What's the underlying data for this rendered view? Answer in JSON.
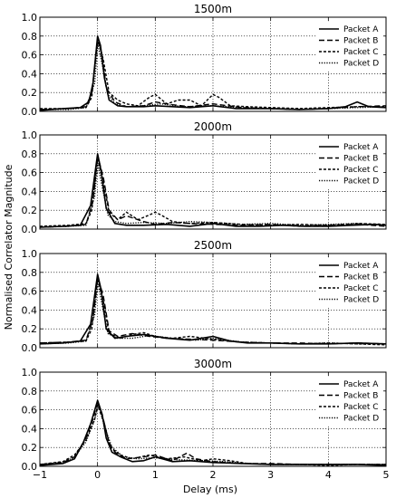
{
  "figure": {
    "ylabel": "Normalised Correlator Magnitude",
    "xlabel": "Delay (ms)"
  },
  "chart_data": [
    {
      "type": "line",
      "title": "1500m",
      "xlim": [
        -1,
        5
      ],
      "ylim": [
        0,
        1
      ],
      "xticks": [
        -1,
        0,
        1,
        2,
        3,
        4,
        5
      ],
      "yticks": [
        0.0,
        0.2,
        0.4,
        0.6,
        0.8,
        1.0
      ],
      "grid": true,
      "legend": "top-right",
      "series": [
        {
          "name": "Packet A",
          "style": "solid",
          "x": [
            -1,
            -0.6,
            -0.3,
            -0.15,
            -0.08,
            0,
            0.05,
            0.12,
            0.2,
            0.35,
            0.5,
            0.8,
            1.0,
            1.3,
            1.6,
            2.0,
            2.4,
            3.0,
            3.5,
            4.0,
            4.3,
            4.5,
            4.7,
            5
          ],
          "y": [
            0.01,
            0.03,
            0.04,
            0.1,
            0.3,
            0.8,
            0.7,
            0.35,
            0.12,
            0.06,
            0.05,
            0.05,
            0.06,
            0.05,
            0.04,
            0.06,
            0.03,
            0.03,
            0.02,
            0.03,
            0.05,
            0.1,
            0.05,
            0.04
          ]
        },
        {
          "name": "Packet B",
          "style": "dashed",
          "x": [
            -1,
            -0.5,
            -0.2,
            -0.1,
            0,
            0.08,
            0.15,
            0.3,
            0.5,
            0.8,
            1.0,
            1.3,
            1.6,
            2.0,
            2.5,
            3.0,
            3.5,
            4.0,
            4.5,
            5
          ],
          "y": [
            0.02,
            0.03,
            0.05,
            0.2,
            0.75,
            0.6,
            0.25,
            0.1,
            0.05,
            0.06,
            0.1,
            0.07,
            0.05,
            0.08,
            0.04,
            0.03,
            0.02,
            0.03,
            0.05,
            0.06
          ]
        },
        {
          "name": "Packet C",
          "style": "dashed-short",
          "x": [
            -1,
            -0.5,
            -0.2,
            -0.1,
            0,
            0.1,
            0.2,
            0.35,
            0.5,
            0.7,
            0.9,
            1.0,
            1.2,
            1.4,
            1.6,
            1.8,
            2.0,
            2.1,
            2.3,
            2.6,
            3.0,
            3.5,
            4.0,
            4.5,
            5
          ],
          "y": [
            0.03,
            0.03,
            0.04,
            0.15,
            0.78,
            0.55,
            0.2,
            0.12,
            0.08,
            0.06,
            0.15,
            0.18,
            0.08,
            0.12,
            0.12,
            0.06,
            0.18,
            0.15,
            0.06,
            0.05,
            0.04,
            0.03,
            0.04,
            0.05,
            0.05
          ]
        },
        {
          "name": "Packet D",
          "style": "dotted",
          "x": [
            -1,
            -0.5,
            -0.2,
            -0.05,
            0,
            0.08,
            0.18,
            0.3,
            0.5,
            0.8,
            1.1,
            1.5,
            2.0,
            2.5,
            3.0,
            3.5,
            4.0,
            4.5,
            5
          ],
          "y": [
            0.02,
            0.02,
            0.04,
            0.3,
            0.72,
            0.5,
            0.18,
            0.08,
            0.05,
            0.06,
            0.08,
            0.05,
            0.06,
            0.04,
            0.03,
            0.02,
            0.03,
            0.04,
            0.05
          ]
        }
      ]
    },
    {
      "type": "line",
      "title": "2000m",
      "xlim": [
        -1,
        5
      ],
      "ylim": [
        0,
        1
      ],
      "xticks": [
        -1,
        0,
        1,
        2,
        3,
        4,
        5
      ],
      "yticks": [
        0.0,
        0.2,
        0.4,
        0.6,
        0.8,
        1.0
      ],
      "grid": true,
      "legend": "top-right",
      "series": [
        {
          "name": "Packet A",
          "style": "solid",
          "x": [
            -1,
            -0.6,
            -0.3,
            -0.12,
            0,
            0.06,
            0.15,
            0.3,
            0.5,
            0.8,
            1.2,
            1.6,
            2.0,
            2.4,
            2.8,
            3.2,
            3.6,
            4.0,
            4.4,
            4.8,
            5
          ],
          "y": [
            0.02,
            0.03,
            0.04,
            0.25,
            0.8,
            0.62,
            0.22,
            0.06,
            0.04,
            0.04,
            0.05,
            0.03,
            0.06,
            0.03,
            0.03,
            0.04,
            0.03,
            0.03,
            0.04,
            0.05,
            0.04
          ]
        },
        {
          "name": "Packet B",
          "style": "dashed",
          "x": [
            -1,
            -0.5,
            -0.2,
            -0.08,
            0,
            0.1,
            0.2,
            0.35,
            0.5,
            0.8,
            1.0,
            1.3,
            1.6,
            2.0,
            2.5,
            3.0,
            3.5,
            4.0,
            4.5,
            5
          ],
          "y": [
            0.02,
            0.03,
            0.05,
            0.3,
            0.78,
            0.55,
            0.2,
            0.1,
            0.14,
            0.08,
            0.05,
            0.07,
            0.06,
            0.05,
            0.04,
            0.05,
            0.03,
            0.04,
            0.05,
            0.03
          ]
        },
        {
          "name": "Packet C",
          "style": "dashed-short",
          "x": [
            -1,
            -0.5,
            -0.2,
            -0.1,
            0,
            0.1,
            0.2,
            0.35,
            0.5,
            0.7,
            0.9,
            1.0,
            1.1,
            1.3,
            1.6,
            2.0,
            2.5,
            3.0,
            3.5,
            4.0,
            4.5,
            5
          ],
          "y": [
            0.03,
            0.04,
            0.06,
            0.2,
            0.75,
            0.5,
            0.18,
            0.1,
            0.18,
            0.1,
            0.15,
            0.18,
            0.15,
            0.08,
            0.06,
            0.07,
            0.05,
            0.04,
            0.05,
            0.04,
            0.06,
            0.05
          ]
        },
        {
          "name": "Packet D",
          "style": "dotted",
          "x": [
            -1,
            -0.5,
            -0.2,
            -0.05,
            0,
            0.08,
            0.18,
            0.3,
            0.5,
            0.8,
            1.2,
            1.6,
            2.0,
            2.5,
            3.0,
            3.5,
            4.0,
            4.5,
            5
          ],
          "y": [
            0.02,
            0.03,
            0.04,
            0.35,
            0.7,
            0.45,
            0.15,
            0.08,
            0.06,
            0.07,
            0.06,
            0.08,
            0.07,
            0.05,
            0.06,
            0.04,
            0.05,
            0.06,
            0.04
          ]
        }
      ]
    },
    {
      "type": "line",
      "title": "2500m",
      "xlim": [
        -1,
        5
      ],
      "ylim": [
        0,
        1
      ],
      "xticks": [
        -1,
        0,
        1,
        2,
        3,
        4,
        5
      ],
      "yticks": [
        0.0,
        0.2,
        0.4,
        0.6,
        0.8,
        1.0
      ],
      "grid": true,
      "legend": "top-right",
      "series": [
        {
          "name": "Packet A",
          "style": "solid",
          "x": [
            -1,
            -0.6,
            -0.3,
            -0.12,
            0,
            0.06,
            0.15,
            0.3,
            0.5,
            0.8,
            1.2,
            1.6,
            2.0,
            2.3,
            2.6,
            3.0,
            3.5,
            4.0,
            4.5,
            5
          ],
          "y": [
            0.04,
            0.05,
            0.07,
            0.25,
            0.78,
            0.62,
            0.2,
            0.1,
            0.12,
            0.14,
            0.1,
            0.08,
            0.12,
            0.07,
            0.05,
            0.05,
            0.04,
            0.04,
            0.05,
            0.04
          ]
        },
        {
          "name": "Packet B",
          "style": "dashed",
          "x": [
            -1,
            -0.5,
            -0.2,
            -0.08,
            0,
            0.1,
            0.2,
            0.35,
            0.6,
            0.9,
            1.2,
            1.6,
            2.0,
            2.5,
            3.0,
            3.5,
            4.0,
            4.5,
            5
          ],
          "y": [
            0.05,
            0.06,
            0.08,
            0.3,
            0.75,
            0.55,
            0.18,
            0.12,
            0.15,
            0.12,
            0.1,
            0.09,
            0.08,
            0.06,
            0.05,
            0.05,
            0.04,
            0.05,
            0.04
          ]
        },
        {
          "name": "Packet C",
          "style": "dashed-short",
          "x": [
            -1,
            -0.5,
            -0.2,
            -0.1,
            0,
            0.1,
            0.2,
            0.4,
            0.6,
            0.8,
            1.0,
            1.3,
            1.6,
            2.0,
            2.5,
            3.0,
            3.5,
            4.0,
            4.5,
            5
          ],
          "y": [
            0.05,
            0.06,
            0.07,
            0.2,
            0.72,
            0.5,
            0.15,
            0.1,
            0.14,
            0.16,
            0.12,
            0.1,
            0.12,
            0.09,
            0.06,
            0.05,
            0.04,
            0.05,
            0.04,
            0.03
          ]
        },
        {
          "name": "Packet D",
          "style": "dotted",
          "x": [
            -1,
            -0.5,
            -0.2,
            -0.05,
            0,
            0.08,
            0.18,
            0.35,
            0.6,
            0.9,
            1.3,
            1.7,
            2.0,
            2.5,
            3.0,
            3.5,
            4.0,
            4.5,
            5
          ],
          "y": [
            0.04,
            0.05,
            0.07,
            0.35,
            0.7,
            0.45,
            0.15,
            0.1,
            0.1,
            0.13,
            0.1,
            0.08,
            0.1,
            0.06,
            0.05,
            0.04,
            0.05,
            0.04,
            0.04
          ]
        }
      ]
    },
    {
      "type": "line",
      "title": "3000m",
      "xlim": [
        -1,
        5
      ],
      "ylim": [
        0,
        1
      ],
      "xticks": [
        -1,
        0,
        1,
        2,
        3,
        4,
        5
      ],
      "yticks": [
        0.0,
        0.2,
        0.4,
        0.6,
        0.8,
        1.0
      ],
      "grid": true,
      "legend": "top-right",
      "series": [
        {
          "name": "Packet A",
          "style": "solid",
          "x": [
            -1,
            -0.6,
            -0.4,
            -0.25,
            -0.12,
            0,
            0.08,
            0.15,
            0.25,
            0.4,
            0.6,
            0.8,
            1.0,
            1.3,
            1.6,
            2.0,
            2.5,
            3.0,
            3.5,
            4.0,
            4.5,
            5
          ],
          "y": [
            0.01,
            0.03,
            0.08,
            0.25,
            0.45,
            0.7,
            0.55,
            0.3,
            0.15,
            0.1,
            0.05,
            0.06,
            0.1,
            0.05,
            0.06,
            0.04,
            0.03,
            0.02,
            0.02,
            0.02,
            0.02,
            0.01
          ]
        },
        {
          "name": "Packet B",
          "style": "dashed",
          "x": [
            -1,
            -0.6,
            -0.4,
            -0.2,
            -0.08,
            0,
            0.1,
            0.2,
            0.3,
            0.5,
            0.8,
            1.0,
            1.3,
            1.55,
            1.7,
            2.0,
            2.5,
            3.0,
            3.5,
            4.0,
            4.5,
            5
          ],
          "y": [
            0.02,
            0.04,
            0.1,
            0.3,
            0.5,
            0.68,
            0.5,
            0.25,
            0.15,
            0.08,
            0.1,
            0.12,
            0.06,
            0.14,
            0.08,
            0.05,
            0.03,
            0.03,
            0.02,
            0.02,
            0.02,
            0.02
          ]
        },
        {
          "name": "Packet C",
          "style": "dashed-short",
          "x": [
            -1,
            -0.6,
            -0.4,
            -0.2,
            -0.05,
            0,
            0.12,
            0.22,
            0.4,
            0.6,
            0.9,
            1.2,
            1.5,
            1.8,
            2.0,
            2.3,
            2.6,
            3.0,
            3.5,
            4.0,
            4.5,
            5
          ],
          "y": [
            0.02,
            0.05,
            0.12,
            0.28,
            0.5,
            0.65,
            0.45,
            0.2,
            0.12,
            0.08,
            0.12,
            0.08,
            0.1,
            0.06,
            0.08,
            0.06,
            0.03,
            0.02,
            0.02,
            0.01,
            0.02,
            0.02
          ]
        },
        {
          "name": "Packet D",
          "style": "dotted",
          "x": [
            -1,
            -0.6,
            -0.4,
            -0.2,
            -0.06,
            0.02,
            0.12,
            0.25,
            0.45,
            0.7,
            1.0,
            1.4,
            1.8,
            2.2,
            2.6,
            3.0,
            3.5,
            4.0,
            4.5,
            5
          ],
          "y": [
            0.02,
            0.04,
            0.1,
            0.26,
            0.48,
            0.66,
            0.42,
            0.2,
            0.1,
            0.08,
            0.09,
            0.07,
            0.06,
            0.05,
            0.03,
            0.02,
            0.02,
            0.02,
            0.02,
            0.02
          ]
        }
      ]
    }
  ]
}
